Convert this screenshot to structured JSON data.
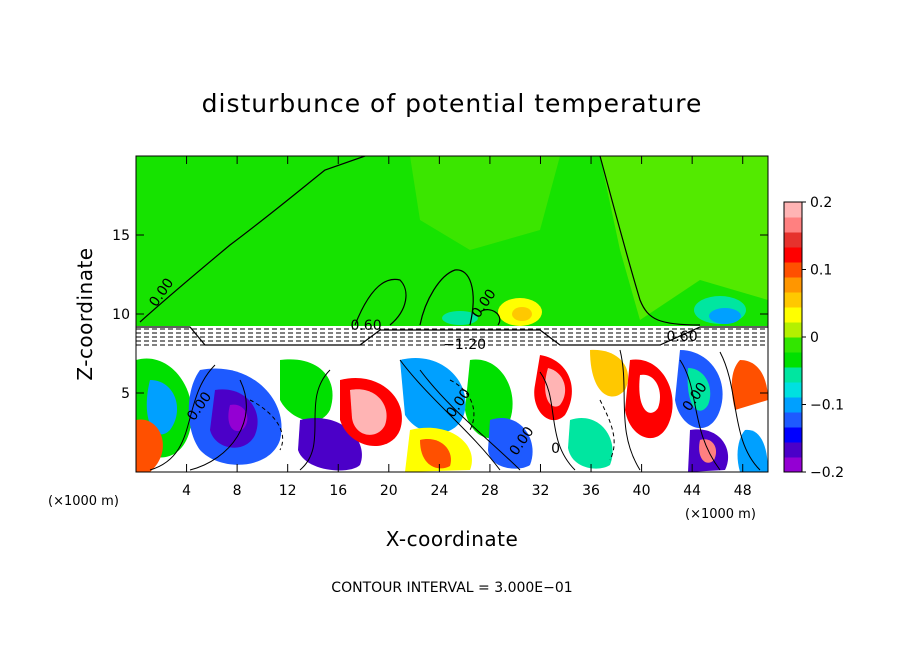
{
  "chart_data": {
    "type": "heatmap",
    "title": "disturbunce of potential temperature",
    "xlabel": "X-coordinate",
    "ylabel": "Z-coordinate",
    "x_unit": "(×1000 m)",
    "x_unit_left": "(×1000 m)",
    "xlim": [
      0,
      50
    ],
    "ylim": [
      0,
      20
    ],
    "x_ticks": [
      4,
      8,
      12,
      16,
      20,
      24,
      28,
      32,
      36,
      40,
      44,
      48
    ],
    "y_ticks": [
      5,
      10,
      15
    ],
    "colorbar": {
      "range": [
        -0.2,
        0.2
      ],
      "tick_values": [
        0.2,
        0.1,
        0,
        -0.1,
        -0.2
      ],
      "tick_labels": [
        "0.2",
        "0.1",
        "0",
        "−0.1",
        "−0.2"
      ],
      "colors": [
        "#9400d3",
        "#4b00c8",
        "#0000ff",
        "#1e5aff",
        "#00a0ff",
        "#00e0e0",
        "#00e6a0",
        "#00e000",
        "#32e600",
        "#b4f000",
        "#ffff00",
        "#ffc800",
        "#ff9600",
        "#ff5000",
        "#ff0000",
        "#e6322d",
        "#ff8080",
        "#ffb4b4"
      ]
    },
    "contour_labels": [
      {
        "text": "0.00",
        "x": 2.3,
        "y": 11.2
      },
      {
        "text": "0.60",
        "x": 18.2,
        "y": 9.0
      },
      {
        "text": "−1.20",
        "x": 26.0,
        "y": 7.8
      },
      {
        "text": "0.00",
        "x": 27.8,
        "y": 10.5
      },
      {
        "text": "0.60",
        "x": 43.2,
        "y": 8.3
      },
      {
        "text": "0.00",
        "x": 5.3,
        "y": 4.0
      },
      {
        "text": "0.00",
        "x": 25.8,
        "y": 4.2
      },
      {
        "text": "0.00",
        "x": 30.8,
        "y": 1.8
      },
      {
        "text": "0",
        "x": 33.2,
        "y": 1.2
      },
      {
        "text": "0.00",
        "x": 44.5,
        "y": 4.6
      }
    ],
    "footnote": "CONTOUR INTERVAL = 3.000E−01"
  }
}
